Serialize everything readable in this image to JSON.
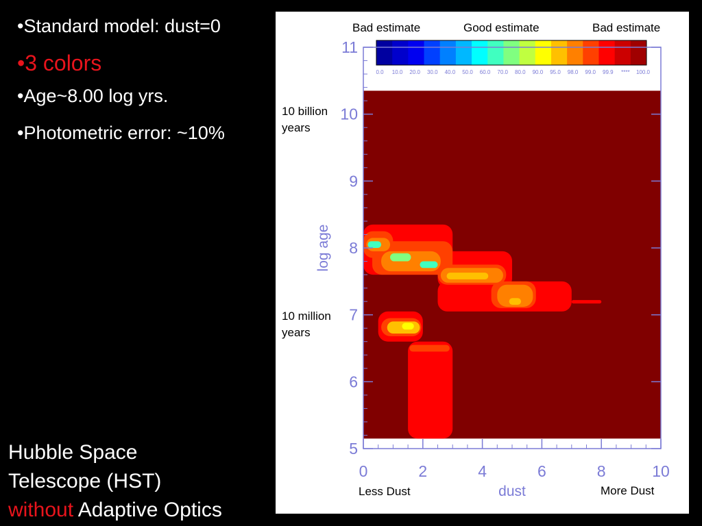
{
  "slide": {
    "bullets": [
      {
        "text": "•Standard model: dust=0"
      },
      {
        "text": "•3 colors"
      },
      {
        "text": "•Age~8.00 log yrs."
      },
      {
        "text": "•Photometric error: ~10%"
      }
    ],
    "caption": {
      "line1": "Hubble Space",
      "line2": "Telescope (HST)",
      "line3_red": "without",
      "line3_rest": " Adaptive Optics"
    }
  },
  "annotations": {
    "bad_estimate_left": "Bad estimate",
    "good_estimate": "Good estimate",
    "bad_estimate_right": "Bad estimate",
    "ten_billion": [
      "10 billion",
      "years"
    ],
    "ten_million": [
      "10 million",
      "years"
    ],
    "less_dust": "Less Dust",
    "more_dust": "More Dust"
  },
  "colors": {
    "background": "#000000",
    "accent_red": "#e8141c",
    "axis_text": "#7b7bd6",
    "plot_background": "#800000",
    "level_colors": [
      "#0000a0",
      "#0000cc",
      "#0000f0",
      "#0040ff",
      "#0080ff",
      "#00b8ff",
      "#00ffff",
      "#40ffc0",
      "#80ff80",
      "#c0ff40",
      "#ffff00",
      "#ffc000",
      "#ff8000",
      "#ff4000",
      "#ff0000",
      "#cc0000",
      "#a00000"
    ]
  },
  "chart_data": {
    "type": "heatmap",
    "xlabel": "dust",
    "ylabel": "log age",
    "xlim": [
      0,
      10
    ],
    "ylim": [
      5,
      11
    ],
    "xticks": [
      0,
      2,
      4,
      6,
      8,
      10
    ],
    "yticks": [
      5,
      6,
      7,
      8,
      9,
      10,
      11
    ],
    "colorbar_labels": [
      "0.0",
      "10.0",
      "20.0",
      "30.0",
      "40.0",
      "50.0",
      "60.0",
      "70.0",
      "80.0",
      "90.0",
      "95.0",
      "98.0",
      "99.0",
      "99.9",
      "****",
      "100.0"
    ],
    "regions": [
      {
        "x0": 1.5,
        "x1": 3.0,
        "y0": 5.15,
        "y1": 6.6,
        "level": 14
      },
      {
        "x0": 1.55,
        "x1": 2.9,
        "y0": 6.45,
        "y1": 6.55,
        "level": 13
      },
      {
        "x0": 0.5,
        "x1": 2.0,
        "y0": 6.6,
        "y1": 7.05,
        "level": 14
      },
      {
        "x0": 0.6,
        "x1": 1.95,
        "y0": 6.68,
        "y1": 6.95,
        "level": 13
      },
      {
        "x0": 0.8,
        "x1": 1.9,
        "y0": 6.72,
        "y1": 6.9,
        "level": 11
      },
      {
        "x0": 1.3,
        "x1": 1.7,
        "y0": 6.78,
        "y1": 6.88,
        "level": 10
      },
      {
        "x0": 0.0,
        "x1": 3.0,
        "y0": 7.6,
        "y1": 8.35,
        "level": 14
      },
      {
        "x0": 2.5,
        "x1": 5.0,
        "y0": 7.4,
        "y1": 7.95,
        "level": 14
      },
      {
        "x0": 2.5,
        "x1": 7.0,
        "y0": 7.05,
        "y1": 7.5,
        "level": 14
      },
      {
        "x0": 7.0,
        "x1": 8.0,
        "y0": 7.17,
        "y1": 7.22,
        "level": 14
      },
      {
        "x0": 0.0,
        "x1": 1.0,
        "y0": 7.85,
        "y1": 8.25,
        "level": 13
      },
      {
        "x0": 0.3,
        "x1": 3.0,
        "y0": 7.6,
        "y1": 8.1,
        "level": 13
      },
      {
        "x0": 2.5,
        "x1": 4.8,
        "y0": 7.45,
        "y1": 7.75,
        "level": 13
      },
      {
        "x0": 4.3,
        "x1": 5.8,
        "y0": 7.1,
        "y1": 7.5,
        "level": 13
      },
      {
        "x0": 0.1,
        "x1": 0.9,
        "y0": 7.95,
        "y1": 8.15,
        "level": 12
      },
      {
        "x0": 0.6,
        "x1": 2.6,
        "y0": 7.65,
        "y1": 7.95,
        "level": 12
      },
      {
        "x0": 2.6,
        "x1": 4.7,
        "y0": 7.48,
        "y1": 7.7,
        "level": 12
      },
      {
        "x0": 4.5,
        "x1": 5.7,
        "y0": 7.12,
        "y1": 7.45,
        "level": 12
      },
      {
        "x0": 0.15,
        "x1": 0.6,
        "y0": 8.0,
        "y1": 8.1,
        "level": 7
      },
      {
        "x0": 0.9,
        "x1": 1.6,
        "y0": 7.8,
        "y1": 7.92,
        "level": 8
      },
      {
        "x0": 1.9,
        "x1": 2.5,
        "y0": 7.7,
        "y1": 7.8,
        "level": 7
      },
      {
        "x0": 2.8,
        "x1": 4.2,
        "y0": 7.53,
        "y1": 7.63,
        "level": 11
      },
      {
        "x0": 4.9,
        "x1": 5.3,
        "y0": 7.15,
        "y1": 7.25,
        "level": 11
      }
    ]
  }
}
